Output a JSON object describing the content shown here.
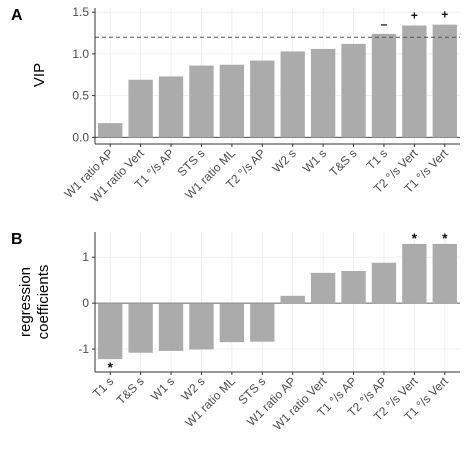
{
  "chart_data": [
    {
      "panel_label": "A",
      "type": "bar",
      "ylabel": "VIP",
      "ylim": [
        -0.08,
        1.55
      ],
      "yticks": [
        0.0,
        0.5,
        1.0,
        1.5
      ],
      "ytick_labels": [
        "0.0",
        "0.5",
        "1.0",
        "1.5"
      ],
      "reference_line": 1.2,
      "categories": [
        "W1 ratio AP",
        "W1 ratio Vert",
        "T1 °/s AP",
        "STS s",
        "W1 ratio ML",
        "T2 °/s AP",
        "W2 s",
        "W1 s",
        "T&S s",
        "T1 s",
        "T2 °/s Vert",
        "T1 °/s Vert"
      ],
      "values": [
        0.17,
        0.69,
        0.73,
        0.86,
        0.87,
        0.92,
        1.03,
        1.06,
        1.12,
        1.24,
        1.34,
        1.35
      ],
      "annotations": [
        "",
        "",
        "",
        "",
        "",
        "",
        "",
        "",
        "",
        "–",
        "+",
        "+"
      ],
      "bar_color": "#ababab",
      "grid": true
    },
    {
      "panel_label": "B",
      "type": "bar",
      "ylabel_lines": [
        "regression",
        "coefficients"
      ],
      "ylim": [
        -1.5,
        1.55
      ],
      "yticks": [
        -1,
        0,
        1
      ],
      "ytick_labels": [
        "-1",
        "0",
        "1"
      ],
      "categories": [
        "T1 s",
        "T&S s",
        "W1 s",
        "W2 s",
        "W1 ratio ML",
        "STS s",
        "W1 ratio AP",
        "W1 ratio Vert",
        "T1 °/s AP",
        "T2 °/s AP",
        "T2 °/s Vert",
        "T1 °/s Vert"
      ],
      "values": [
        -1.22,
        -1.08,
        -1.04,
        -1.01,
        -0.85,
        -0.84,
        0.16,
        0.66,
        0.7,
        0.88,
        1.29,
        1.29
      ],
      "annotations": [
        "*",
        "",
        "",
        "",
        "",
        "",
        "",
        "",
        "",
        "",
        "*",
        "*"
      ],
      "bar_color": "#ababab",
      "grid": true
    }
  ]
}
